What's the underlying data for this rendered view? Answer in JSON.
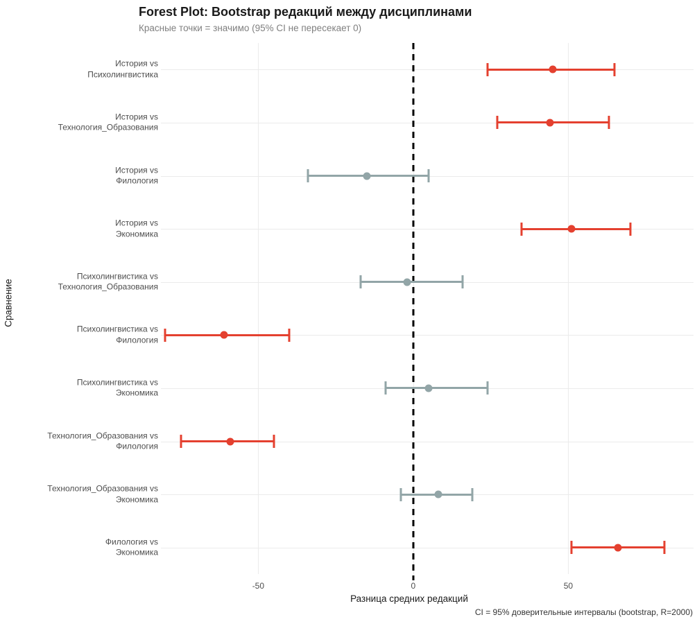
{
  "colors": {
    "significant": "#E4402F",
    "not_significant": "#92A5A7",
    "gridline": "#EBEBEB",
    "zero_line": "#000000",
    "axis_text": "#4D4D4D",
    "subtitle_text": "#7F7F7F"
  },
  "chart_data": {
    "type": "scatter",
    "subtype": "forest-plot-with-error-bars",
    "title": "Forest Plot: Bootstrap редакций между дисциплинами",
    "subtitle": "Красные точки = значимо (95% CI не пересекает 0)",
    "caption": "CI = 95% доверительные интервалы (bootstrap, R=2000)",
    "xlabel": "Разница средних редакций",
    "ylabel": "Сравнение",
    "xlim": [
      -81.4,
      90.4
    ],
    "x_ticks": [
      -50,
      0,
      50
    ],
    "zero_reference_line": 0,
    "grid": "major-only",
    "legend": "none",
    "points": [
      {
        "label": "История vs Психолингвистика",
        "value": 45,
        "ci_low": 24,
        "ci_high": 65,
        "significant": true
      },
      {
        "label": "История vs Технология_Образования",
        "value": 44,
        "ci_low": 27,
        "ci_high": 63,
        "significant": true
      },
      {
        "label": "История vs Филология",
        "value": -15,
        "ci_low": -34,
        "ci_high": 5,
        "significant": false
      },
      {
        "label": "История vs Экономика",
        "value": 51,
        "ci_low": 35,
        "ci_high": 70,
        "significant": true
      },
      {
        "label": "Психолингвистика vs Технология_Образования",
        "value": -2,
        "ci_low": -17,
        "ci_high": 16,
        "significant": false
      },
      {
        "label": "Психолингвистика vs Филология",
        "value": -61,
        "ci_low": -80,
        "ci_high": -40,
        "significant": true
      },
      {
        "label": "Психолингвистика vs Экономика",
        "value": 5,
        "ci_low": -9,
        "ci_high": 24,
        "significant": false
      },
      {
        "label": "Технология_Образования vs Филология",
        "value": -59,
        "ci_low": -75,
        "ci_high": -45,
        "significant": true
      },
      {
        "label": "Технология_Образования vs Экономика",
        "value": 8,
        "ci_low": -4,
        "ci_high": 19,
        "significant": false
      },
      {
        "label": "Филология vs Экономика",
        "value": 66,
        "ci_low": 51,
        "ci_high": 81,
        "significant": true
      }
    ]
  }
}
